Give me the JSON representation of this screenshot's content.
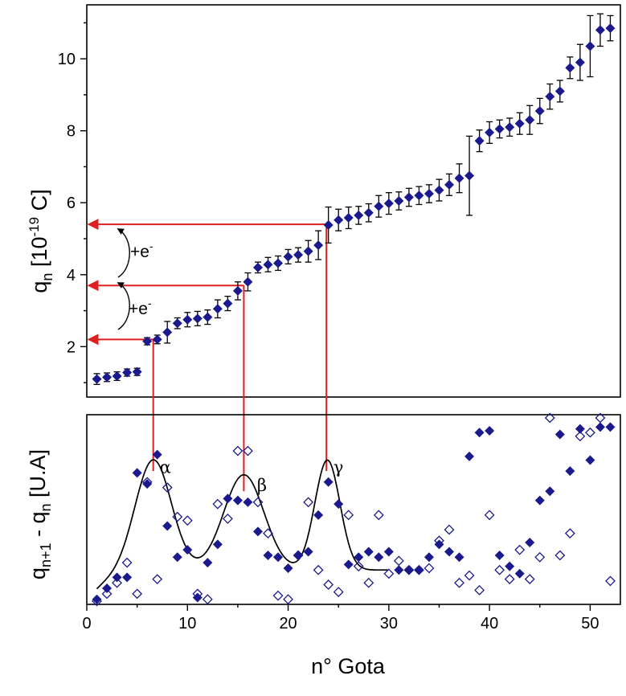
{
  "chart_data": [
    {
      "panel": "top",
      "type": "scatter",
      "ylabel_main": "q",
      "ylabel_sub": "n",
      "ylabel_rest": " [10",
      "ylabel_exp": "-19",
      "ylabel_unit": " C]",
      "xlim": [
        0,
        53
      ],
      "ylim": [
        0.6,
        11.5
      ],
      "yticks": [
        2,
        4,
        6,
        8,
        10
      ],
      "marker": "filled-diamond",
      "marker_color": "#1a1a8c",
      "errorbar_color": "#000000",
      "x": [
        1,
        2,
        3,
        4,
        5,
        6,
        7,
        8,
        9,
        10,
        11,
        12,
        13,
        14,
        15,
        16,
        17,
        18,
        19,
        20,
        21,
        22,
        23,
        24,
        25,
        26,
        27,
        28,
        29,
        30,
        31,
        32,
        33,
        34,
        35,
        36,
        37,
        38,
        39,
        40,
        41,
        42,
        43,
        44,
        45,
        46,
        47,
        48,
        49,
        50,
        51,
        52
      ],
      "y": [
        1.1,
        1.15,
        1.18,
        1.28,
        1.3,
        2.15,
        2.2,
        2.4,
        2.65,
        2.75,
        2.78,
        2.82,
        3.05,
        3.2,
        3.55,
        3.8,
        4.2,
        4.28,
        4.32,
        4.5,
        4.55,
        4.65,
        4.82,
        5.38,
        5.52,
        5.58,
        5.65,
        5.72,
        5.9,
        5.98,
        6.05,
        6.15,
        6.2,
        6.25,
        6.35,
        6.5,
        6.68,
        6.75,
        7.72,
        7.95,
        8.05,
        8.1,
        8.2,
        8.3,
        8.55,
        8.95,
        9.1,
        9.75,
        9.9,
        10.35,
        10.8,
        10.85
      ],
      "yerr": [
        0.15,
        0.12,
        0.12,
        0.1,
        0.1,
        0.1,
        0.12,
        0.3,
        0.15,
        0.2,
        0.2,
        0.2,
        0.25,
        0.2,
        0.25,
        0.25,
        0.15,
        0.2,
        0.2,
        0.2,
        0.2,
        0.3,
        0.4,
        0.5,
        0.3,
        0.3,
        0.25,
        0.25,
        0.3,
        0.3,
        0.25,
        0.25,
        0.25,
        0.25,
        0.3,
        0.3,
        0.4,
        1.1,
        0.3,
        0.3,
        0.25,
        0.25,
        0.3,
        0.4,
        0.35,
        0.35,
        0.3,
        0.3,
        0.5,
        0.85,
        0.45,
        0.35
      ],
      "reference_lines": [
        {
          "y": 2.2,
          "x_end": 6.6,
          "label": "α"
        },
        {
          "y": 3.7,
          "x_end": 15.6,
          "label": "β"
        },
        {
          "y": 5.4,
          "x_end": 23.8,
          "label": "γ"
        }
      ],
      "reference_color": "#e02020",
      "annotations": [
        "+e",
        "+e"
      ],
      "annotation_sup": "-"
    },
    {
      "panel": "bottom",
      "type": "scatter",
      "xlabel": "n° Gota",
      "ylabel_a": "q",
      "ylabel_a_sub": "n+1",
      "ylabel_b": " - q",
      "ylabel_b_sub": "n",
      "ylabel_c": " [U.A]",
      "xlim": [
        0,
        53
      ],
      "ylim": [
        0,
        1
      ],
      "xticks": [
        0,
        10,
        20,
        30,
        40,
        50
      ],
      "peak_labels": [
        {
          "text": "α",
          "x": 7.8,
          "y": 0.7
        },
        {
          "text": "β",
          "x": 17.4,
          "y": 0.6
        },
        {
          "text": "γ",
          "x": 25.0,
          "y": 0.7
        }
      ],
      "filled_series": {
        "name": "filled",
        "x": [
          1,
          2,
          3,
          4,
          5,
          6,
          7,
          8,
          9,
          10,
          11,
          12,
          13,
          14,
          15,
          16,
          17,
          18,
          19,
          20,
          21,
          22,
          23,
          24,
          25,
          26,
          27,
          28,
          29,
          30,
          31,
          32,
          33,
          34,
          35,
          36,
          37,
          38,
          39,
          40,
          41,
          42,
          43,
          44,
          45,
          46,
          47,
          48,
          49,
          50,
          51,
          52
        ],
        "y": [
          0.01,
          0.07,
          0.13,
          0.13,
          0.7,
          0.64,
          0.8,
          0.41,
          0.24,
          0.28,
          0.02,
          0.21,
          0.31,
          0.56,
          0.55,
          0.54,
          0.38,
          0.25,
          0.24,
          0.18,
          0.25,
          0.27,
          0.47,
          0.65,
          0.53,
          0.2,
          0.24,
          0.27,
          0.24,
          0.27,
          0.17,
          0.17,
          0.17,
          0.24,
          0.31,
          0.27,
          0.24,
          0.79,
          0.92,
          0.93,
          0.25,
          0.19,
          0.15,
          0.32,
          0.55,
          0.6,
          0.91,
          0.71,
          0.94,
          0.77,
          0.95,
          0.95
        ]
      },
      "open_series": {
        "name": "open",
        "x": [
          1,
          2,
          3,
          4,
          5,
          6,
          7,
          8,
          9,
          10,
          11,
          12,
          13,
          14,
          15,
          16,
          17,
          18,
          19,
          20,
          21,
          22,
          23,
          24,
          25,
          26,
          27,
          28,
          29,
          30,
          31,
          32,
          33,
          34,
          35,
          36,
          37,
          38,
          39,
          40,
          41,
          42,
          43,
          44,
          45,
          46,
          47,
          48,
          49,
          50,
          51,
          52
        ],
        "y": [
          0.0,
          0.04,
          0.1,
          0.21,
          0.04,
          0.65,
          0.12,
          0.62,
          0.46,
          0.44,
          0.04,
          0.01,
          0.53,
          0.45,
          0.82,
          0.82,
          0.54,
          0.37,
          0.03,
          0.01,
          0.25,
          0.54,
          0.17,
          0.09,
          0.05,
          0.47,
          0.19,
          0.1,
          0.47,
          0.15,
          0.22,
          0.17,
          0.17,
          0.18,
          0.33,
          0.39,
          0.1,
          0.14,
          0.06,
          0.47,
          0.17,
          0.12,
          0.28,
          0.12,
          0.24,
          1.0,
          0.25,
          0.37,
          0.9,
          0.92,
          1.0,
          0.11
        ]
      },
      "fit_curve_color": "#000000",
      "marker_color": "#1a1a8c"
    }
  ]
}
